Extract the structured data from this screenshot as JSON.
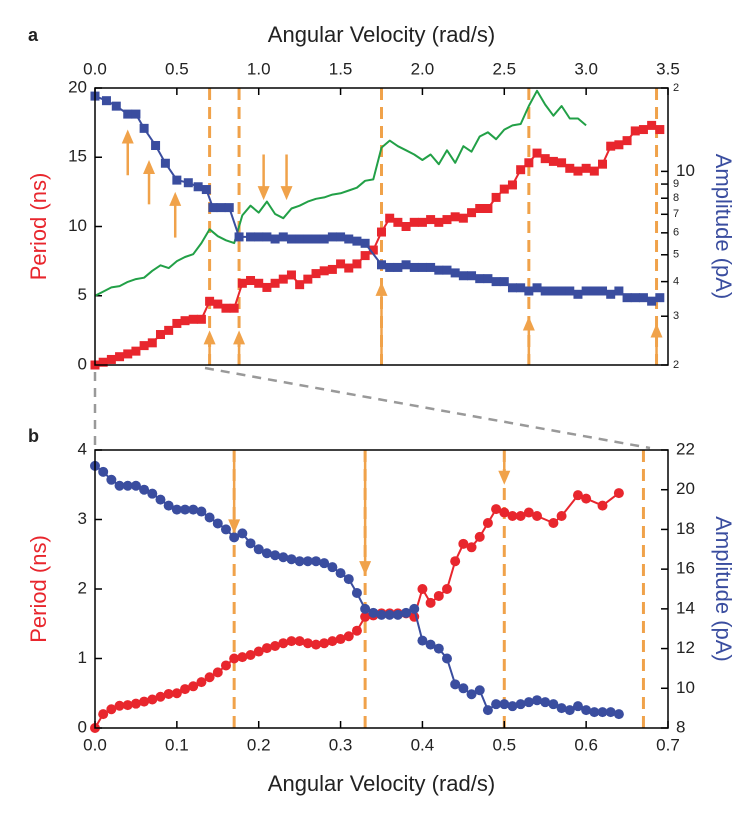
{
  "chart_data": [
    {
      "type": "line",
      "panel_label": "a",
      "xlabel": "Angular Velocity (rad/s)",
      "ylabel": "Period (ns)",
      "y2label": "Amplitude (pA)",
      "xaxis_position": "top",
      "xlim": [
        0,
        3.5
      ],
      "ylim": [
        0,
        20
      ],
      "y2lim": [
        2,
        20
      ],
      "y2scale": "log",
      "xticks": [
        {
          "value": 0,
          "label": "0.0"
        },
        0.5,
        {
          "value": 1,
          "label": "1.0"
        },
        1.5,
        {
          "value": 2,
          "label": "2.0"
        },
        2.5,
        {
          "value": 3,
          "label": "3.0"
        },
        3.5
      ],
      "yticks": [
        0,
        5,
        10,
        15,
        20
      ],
      "y2ticks": [
        2,
        3,
        4,
        5,
        6,
        7,
        8,
        9,
        10,
        {
          "value": 20,
          "label": "2"
        }
      ],
      "vlines": [
        0.7,
        0.88,
        1.75,
        2.65,
        3.43
      ],
      "vline_color": "#f0a24a",
      "arrows": [
        {
          "x": 0.7,
          "from": 0,
          "to": 2.5
        },
        {
          "x": 0.88,
          "from": 0,
          "to": 2.5
        },
        {
          "x": 1.75,
          "from": 0,
          "to": 6
        },
        {
          "x": 2.65,
          "from": 0,
          "to": 3.5
        },
        {
          "x": 3.43,
          "from": 0,
          "to": 3
        },
        {
          "x": 0.2,
          "from": 13.7,
          "to": 17
        },
        {
          "x": 0.33,
          "from": 11.6,
          "to": 14.8
        },
        {
          "x": 0.49,
          "from": 9.2,
          "to": 12.5
        },
        {
          "x": 1.03,
          "from": 15.2,
          "to": 11.9
        },
        {
          "x": 1.17,
          "from": 15.2,
          "to": 11.9
        }
      ],
      "series": [
        {
          "color": "#22a047",
          "marker": "none",
          "x": [
            0,
            0.05,
            0.1,
            0.15,
            0.2,
            0.25,
            0.3,
            0.35,
            0.4,
            0.45,
            0.5,
            0.55,
            0.6,
            0.65,
            0.7,
            0.75,
            0.8,
            0.85,
            0.9,
            0.95,
            1,
            1.05,
            1.1,
            1.15,
            1.2,
            1.25,
            1.3,
            1.35,
            1.4,
            1.45,
            1.5,
            1.55,
            1.6,
            1.65,
            1.7,
            1.75,
            1.8,
            1.85,
            1.9,
            1.95,
            2,
            2.05,
            2.1,
            2.15,
            2.2,
            2.25,
            2.3,
            2.35,
            2.4,
            2.45,
            2.5,
            2.55,
            2.6,
            2.65,
            2.7,
            2.75,
            2.8,
            2.85,
            2.9,
            2.95,
            3
          ],
          "values": [
            5.0,
            5.3,
            5.6,
            5.7,
            6.0,
            6.2,
            6.3,
            6.8,
            7.2,
            7.0,
            7.5,
            7.8,
            8.0,
            8.8,
            9.8,
            9.3,
            9.0,
            8.8,
            10.8,
            11.5,
            11.0,
            11.8,
            10.9,
            10.6,
            11.3,
            11.5,
            11.8,
            12.0,
            12.1,
            12.3,
            12.4,
            12.6,
            12.8,
            13.3,
            13.4,
            15.7,
            16.2,
            15.8,
            15.5,
            15.2,
            14.8,
            15.2,
            14.5,
            15.5,
            14.6,
            15.8,
            15.4,
            16.5,
            16.8,
            16.3,
            17.0,
            17.3,
            17.4,
            18.7,
            19.8,
            18.8,
            18.0,
            18.7,
            17.8,
            17.8,
            17.3
          ]
        },
        {
          "color": "#e8262d",
          "marker": "square",
          "x": [
            0,
            0.05,
            0.1,
            0.15,
            0.2,
            0.25,
            0.3,
            0.35,
            0.4,
            0.45,
            0.5,
            0.55,
            0.6,
            0.65,
            0.7,
            0.75,
            0.8,
            0.85,
            0.9,
            0.95,
            1,
            1.05,
            1.1,
            1.15,
            1.2,
            1.25,
            1.3,
            1.35,
            1.4,
            1.45,
            1.5,
            1.55,
            1.6,
            1.65,
            1.7,
            1.75,
            1.8,
            1.85,
            1.9,
            1.95,
            2,
            2.05,
            2.1,
            2.15,
            2.2,
            2.25,
            2.3,
            2.35,
            2.4,
            2.45,
            2.5,
            2.55,
            2.6,
            2.65,
            2.7,
            2.75,
            2.8,
            2.85,
            2.9,
            2.95,
            3,
            3.05,
            3.1,
            3.15,
            3.2,
            3.25,
            3.3,
            3.35,
            3.4,
            3.45
          ],
          "values": [
            0,
            0.2,
            0.4,
            0.6,
            0.8,
            1.0,
            1.4,
            1.6,
            2.2,
            2.5,
            3.0,
            3.2,
            3.3,
            3.3,
            4.6,
            4.4,
            4.1,
            4.1,
            5.9,
            6.1,
            5.9,
            5.6,
            5.9,
            6.2,
            6.5,
            5.8,
            6.2,
            6.6,
            6.8,
            6.9,
            7.3,
            7.0,
            7.3,
            7.9,
            8.3,
            9.6,
            10.6,
            10.3,
            10.0,
            10.3,
            10.3,
            10.5,
            10.3,
            10.5,
            10.7,
            10.6,
            11.0,
            11.3,
            11.3,
            12.1,
            12.7,
            13.0,
            14.1,
            14.6,
            15.3,
            14.9,
            14.7,
            14.6,
            14.2,
            14.0,
            14.2,
            14.0,
            14.5,
            15.8,
            15.9,
            16.2,
            16.9,
            17.0,
            17.3,
            17.0
          ]
        },
        {
          "color": "#3a4d9f",
          "marker": "square",
          "axis": "y2",
          "x": [
            0,
            0.07,
            0.13,
            0.2,
            0.25,
            0.3,
            0.37,
            0.43,
            0.5,
            0.57,
            0.63,
            0.68,
            0.72,
            0.77,
            0.82,
            0.88,
            0.95,
            1,
            1.05,
            1.1,
            1.15,
            1.2,
            1.25,
            1.3,
            1.35,
            1.4,
            1.45,
            1.5,
            1.55,
            1.6,
            1.65,
            1.75,
            1.8,
            1.85,
            1.9,
            1.95,
            2,
            2.05,
            2.1,
            2.15,
            2.2,
            2.25,
            2.3,
            2.35,
            2.4,
            2.45,
            2.5,
            2.55,
            2.6,
            2.65,
            2.7,
            2.75,
            2.8,
            2.85,
            2.9,
            2.95,
            3,
            3.05,
            3.1,
            3.15,
            3.2,
            3.25,
            3.3,
            3.35,
            3.4,
            3.45
          ],
          "values": [
            18.7,
            18.0,
            17.2,
            16.1,
            16.1,
            14.3,
            12.4,
            10.7,
            9.3,
            9.1,
            8.8,
            8.6,
            7.4,
            7.4,
            7.4,
            5.8,
            5.8,
            5.8,
            5.8,
            5.7,
            5.8,
            5.7,
            5.7,
            5.7,
            5.7,
            5.7,
            5.8,
            5.8,
            5.7,
            5.6,
            5.5,
            4.6,
            4.5,
            4.5,
            4.6,
            4.5,
            4.5,
            4.5,
            4.4,
            4.4,
            4.3,
            4.2,
            4.2,
            4.1,
            4.1,
            4.0,
            4.0,
            3.8,
            3.8,
            3.7,
            3.8,
            3.7,
            3.7,
            3.7,
            3.7,
            3.6,
            3.7,
            3.7,
            3.7,
            3.6,
            3.7,
            3.5,
            3.5,
            3.5,
            3.4,
            3.5
          ]
        }
      ]
    },
    {
      "type": "line",
      "panel_label": "b",
      "xlabel": "Angular Velocity (rad/s)",
      "ylabel": "Period (ns)",
      "y2label": "Amplitude (pA)",
      "xaxis_position": "bottom",
      "xlim": [
        0,
        0.7
      ],
      "ylim": [
        0,
        4
      ],
      "y2lim": [
        8,
        22
      ],
      "y2scale": "linear",
      "xticks": [
        {
          "value": 0,
          "label": "0.0"
        },
        0.1,
        0.2,
        0.3,
        0.4,
        0.5,
        0.6,
        0.7
      ],
      "yticks": [
        0,
        1,
        2,
        3,
        4
      ],
      "y2ticks": [
        8,
        10,
        12,
        14,
        16,
        18,
        20,
        22
      ],
      "vlines": [
        0.17,
        0.33,
        0.5,
        0.67
      ],
      "vline_color": "#f0a24a",
      "arrows": [
        {
          "x": 0.17,
          "from": 4,
          "to": 2.8
        },
        {
          "x": 0.33,
          "from": 4,
          "to": 2.2
        },
        {
          "x": 0.5,
          "from": 4,
          "to": 3.5
        }
      ],
      "series": [
        {
          "color": "#e8262d",
          "marker": "circle",
          "x": [
            0,
            0.01,
            0.02,
            0.03,
            0.04,
            0.05,
            0.06,
            0.07,
            0.08,
            0.09,
            0.1,
            0.11,
            0.12,
            0.13,
            0.14,
            0.15,
            0.16,
            0.17,
            0.18,
            0.19,
            0.2,
            0.21,
            0.22,
            0.23,
            0.24,
            0.25,
            0.26,
            0.27,
            0.28,
            0.29,
            0.3,
            0.31,
            0.32,
            0.33,
            0.34,
            0.35,
            0.36,
            0.37,
            0.38,
            0.39,
            0.4,
            0.41,
            0.42,
            0.43,
            0.44,
            0.45,
            0.46,
            0.47,
            0.48,
            0.49,
            0.5,
            0.51,
            0.52,
            0.53,
            0.54,
            0.56,
            0.57,
            0.59,
            0.6,
            0.62,
            0.64
          ],
          "values": [
            0,
            0.2,
            0.27,
            0.32,
            0.33,
            0.35,
            0.38,
            0.41,
            0.45,
            0.49,
            0.5,
            0.56,
            0.6,
            0.66,
            0.73,
            0.8,
            0.9,
            1.0,
            1.02,
            1.05,
            1.1,
            1.15,
            1.18,
            1.22,
            1.25,
            1.25,
            1.22,
            1.2,
            1.22,
            1.25,
            1.28,
            1.32,
            1.4,
            1.6,
            1.62,
            1.65,
            1.65,
            1.65,
            1.65,
            1.6,
            2.0,
            1.8,
            1.9,
            2.0,
            2.4,
            2.65,
            2.6,
            2.75,
            2.95,
            3.15,
            3.1,
            3.05,
            3.05,
            3.1,
            3.05,
            2.95,
            3.05,
            3.35,
            3.3,
            3.2,
            3.38
          ]
        },
        {
          "color": "#3a4d9f",
          "marker": "circle",
          "axis": "y2",
          "x": [
            0,
            0.01,
            0.02,
            0.03,
            0.04,
            0.05,
            0.06,
            0.07,
            0.08,
            0.09,
            0.1,
            0.11,
            0.12,
            0.13,
            0.14,
            0.15,
            0.16,
            0.17,
            0.18,
            0.19,
            0.2,
            0.21,
            0.22,
            0.23,
            0.24,
            0.25,
            0.26,
            0.27,
            0.28,
            0.29,
            0.3,
            0.31,
            0.32,
            0.33,
            0.34,
            0.35,
            0.36,
            0.37,
            0.38,
            0.39,
            0.4,
            0.41,
            0.42,
            0.43,
            0.44,
            0.45,
            0.46,
            0.47,
            0.48,
            0.49,
            0.5,
            0.51,
            0.52,
            0.53,
            0.54,
            0.55,
            0.56,
            0.57,
            0.58,
            0.59,
            0.6,
            0.61,
            0.62,
            0.63,
            0.64
          ],
          "values": [
            21.2,
            20.9,
            20.5,
            20.2,
            20.2,
            20.2,
            20.0,
            19.8,
            19.5,
            19.2,
            19.0,
            19.0,
            19.0,
            18.9,
            18.6,
            18.3,
            18.0,
            17.6,
            17.8,
            17.3,
            17.0,
            16.8,
            16.7,
            16.6,
            16.5,
            16.4,
            16.4,
            16.4,
            16.3,
            16.1,
            15.8,
            15.5,
            14.8,
            14.0,
            13.8,
            13.7,
            13.7,
            13.7,
            13.8,
            14.0,
            12.4,
            12.2,
            12.0,
            11.5,
            10.2,
            10.0,
            9.7,
            9.9,
            8.9,
            9.2,
            9.2,
            9.1,
            9.2,
            9.3,
            9.4,
            9.3,
            9.2,
            9.0,
            8.9,
            9.1,
            8.9,
            8.8,
            8.8,
            8.8,
            8.7
          ]
        }
      ]
    }
  ]
}
